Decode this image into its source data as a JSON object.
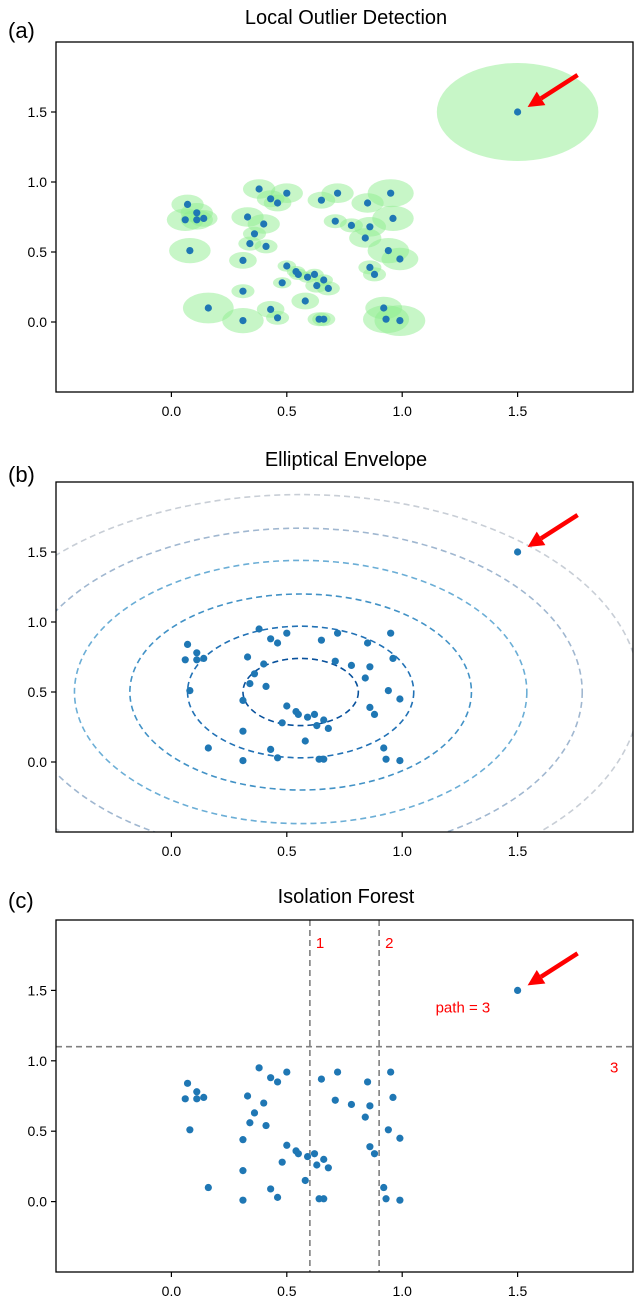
{
  "chart_data": [
    {
      "type": "scatter",
      "panel_label": "(a)",
      "title": "Local Outlier Detection",
      "xlim": [
        -0.5,
        2.0
      ],
      "ylim": [
        -0.5,
        2.0
      ],
      "xticks": [
        "0.0",
        "0.5",
        "1.0",
        "1.5"
      ],
      "yticks": [
        "0.0",
        "0.5",
        "1.0",
        "1.5"
      ],
      "grid": false,
      "series": [
        {
          "points": [
            [
              0.07,
              0.84
            ],
            [
              0.06,
              0.73
            ],
            [
              0.11,
              0.78
            ],
            [
              0.11,
              0.73
            ],
            [
              0.14,
              0.74
            ],
            [
              0.08,
              0.51
            ],
            [
              0.16,
              0.1
            ],
            [
              0.38,
              0.95
            ],
            [
              0.43,
              0.88
            ],
            [
              0.46,
              0.85
            ],
            [
              0.5,
              0.92
            ],
            [
              0.33,
              0.75
            ],
            [
              0.4,
              0.7
            ],
            [
              0.36,
              0.63
            ],
            [
              0.34,
              0.56
            ],
            [
              0.41,
              0.54
            ],
            [
              0.31,
              0.44
            ],
            [
              0.31,
              0.22
            ],
            [
              0.31,
              0.01
            ],
            [
              0.43,
              0.09
            ],
            [
              0.46,
              0.03
            ],
            [
              0.5,
              0.4
            ],
            [
              0.54,
              0.36
            ],
            [
              0.55,
              0.34
            ],
            [
              0.48,
              0.28
            ],
            [
              0.59,
              0.32
            ],
            [
              0.62,
              0.34
            ],
            [
              0.63,
              0.26
            ],
            [
              0.66,
              0.3
            ],
            [
              0.68,
              0.24
            ],
            [
              0.58,
              0.15
            ],
            [
              0.64,
              0.02
            ],
            [
              0.66,
              0.02
            ],
            [
              0.65,
              0.87
            ],
            [
              0.72,
              0.92
            ],
            [
              0.71,
              0.72
            ],
            [
              0.78,
              0.69
            ],
            [
              0.85,
              0.85
            ],
            [
              0.84,
              0.6
            ],
            [
              0.86,
              0.68
            ],
            [
              0.86,
              0.39
            ],
            [
              0.88,
              0.34
            ],
            [
              0.95,
              0.92
            ],
            [
              0.96,
              0.74
            ],
            [
              0.94,
              0.51
            ],
            [
              0.99,
              0.45
            ],
            [
              0.92,
              0.1
            ],
            [
              0.93,
              0.02
            ],
            [
              0.99,
              0.01
            ],
            [
              1.5,
              1.5
            ]
          ],
          "lof_radius": [
            0.07,
            0.08,
            0.07,
            0.07,
            0.06,
            0.09,
            0.11,
            0.07,
            0.06,
            0.06,
            0.07,
            0.07,
            0.07,
            0.05,
            0.05,
            0.05,
            0.06,
            0.05,
            0.09,
            0.06,
            0.05,
            0.04,
            0.04,
            0.04,
            0.04,
            0.04,
            0.04,
            0.05,
            0.04,
            0.05,
            0.06,
            0.05,
            0.05,
            0.06,
            0.07,
            0.05,
            0.05,
            0.07,
            0.07,
            0.07,
            0.05,
            0.05,
            0.1,
            0.09,
            0.09,
            0.08,
            0.08,
            0.1,
            0.11,
            0.35
          ]
        }
      ],
      "outlier": [
        1.5,
        1.5
      ],
      "colors": {
        "points": "#1f77b4",
        "lof_circles": "#90ee90",
        "arrow": "#ff0000",
        "axes": "#000000"
      }
    },
    {
      "type": "scatter",
      "panel_label": "(b)",
      "title": "Elliptical Envelope",
      "xlim": [
        -0.5,
        2.0
      ],
      "ylim": [
        -0.5,
        2.0
      ],
      "xticks": [
        "0.0",
        "0.5",
        "1.0",
        "1.5"
      ],
      "yticks": [
        "0.0",
        "0.5",
        "1.0",
        "1.5"
      ],
      "grid": false,
      "contours": {
        "center": [
          0.56,
          0.5
        ],
        "radii": [
          [
            0.25,
            0.24
          ],
          [
            0.49,
            0.47
          ],
          [
            0.74,
            0.7
          ],
          [
            0.98,
            0.94
          ],
          [
            1.22,
            1.17
          ],
          [
            1.47,
            1.41
          ]
        ],
        "colors": [
          "#08519c",
          "#2171b5",
          "#4292c6",
          "#6baed6",
          "#a0b7d0",
          "#c8ced6"
        ]
      },
      "outlier": [
        1.5,
        1.5
      ],
      "uses_points_of_panel": 0,
      "colors": {
        "points": "#1f77b4",
        "arrow": "#ff0000"
      }
    },
    {
      "type": "scatter",
      "panel_label": "(c)",
      "title": "Isolation Forest",
      "xlim": [
        -0.5,
        2.0
      ],
      "ylim": [
        -0.5,
        2.0
      ],
      "xticks": [
        "0.0",
        "0.5",
        "1.0",
        "1.5"
      ],
      "yticks": [
        "0.0",
        "0.5",
        "1.0",
        "1.5"
      ],
      "grid": false,
      "splits": [
        {
          "orientation": "vertical",
          "value": 0.6,
          "label": "1"
        },
        {
          "orientation": "vertical",
          "value": 0.9,
          "label": "2"
        },
        {
          "orientation": "horizontal",
          "value": 1.1,
          "label": "3"
        }
      ],
      "annotation": "path = 3",
      "outlier": [
        1.5,
        1.5
      ],
      "uses_points_of_panel": 0,
      "colors": {
        "points": "#1f77b4",
        "split_lines": "#808080",
        "text": "#ff0000",
        "arrow": "#ff0000"
      }
    }
  ]
}
